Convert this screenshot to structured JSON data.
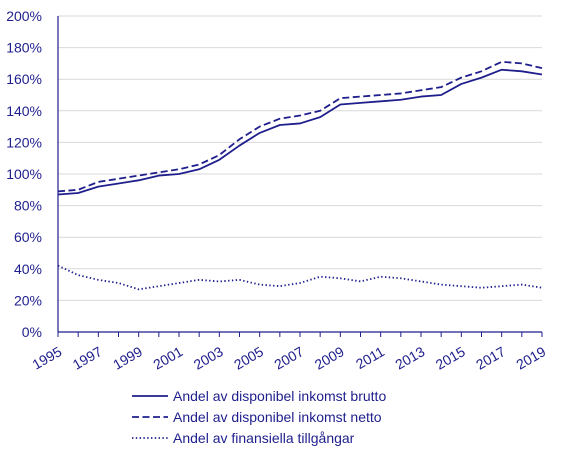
{
  "chart_data": {
    "type": "line",
    "x": [
      1995,
      1996,
      1997,
      1998,
      1999,
      2000,
      2001,
      2002,
      2003,
      2004,
      2005,
      2006,
      2007,
      2008,
      2009,
      2010,
      2011,
      2012,
      2013,
      2014,
      2015,
      2016,
      2017,
      2018,
      2019
    ],
    "x_tick_labels": [
      "1995",
      "1997",
      "1999",
      "2001",
      "2003",
      "2005",
      "2007",
      "2009",
      "2011",
      "2013",
      "2015",
      "2017",
      "2019"
    ],
    "y_tick_labels": [
      "0%",
      "20%",
      "40%",
      "60%",
      "80%",
      "100%",
      "120%",
      "140%",
      "160%",
      "180%",
      "200%"
    ],
    "ylim": [
      0,
      200
    ],
    "xlim": [
      1995,
      2019
    ],
    "grid": "horizontal",
    "legend_position": "bottom",
    "line_color": "#1e1e8c",
    "series": [
      {
        "name": "Andel av disponibel inkomst brutto",
        "dash": "solid",
        "values": [
          87,
          88,
          92,
          94,
          96,
          99,
          100,
          103,
          109,
          118,
          126,
          131,
          132,
          136,
          144,
          145,
          146,
          147,
          149,
          150,
          157,
          161,
          166,
          165,
          163
        ]
      },
      {
        "name": "Andel av disponibel inkomst netto",
        "dash": "dashed",
        "values": [
          89,
          90,
          95,
          97,
          99,
          101,
          103,
          106,
          112,
          122,
          130,
          135,
          137,
          140,
          148,
          149,
          150,
          151,
          153,
          155,
          161,
          165,
          171,
          170,
          167
        ]
      },
      {
        "name": "Andel av finansiella tillgångar",
        "dash": "dotted",
        "values": [
          42,
          36,
          33,
          31,
          27,
          29,
          31,
          33,
          32,
          33,
          30,
          29,
          31,
          35,
          34,
          32,
          35,
          34,
          32,
          30,
          29,
          28,
          29,
          30,
          28
        ]
      }
    ]
  }
}
